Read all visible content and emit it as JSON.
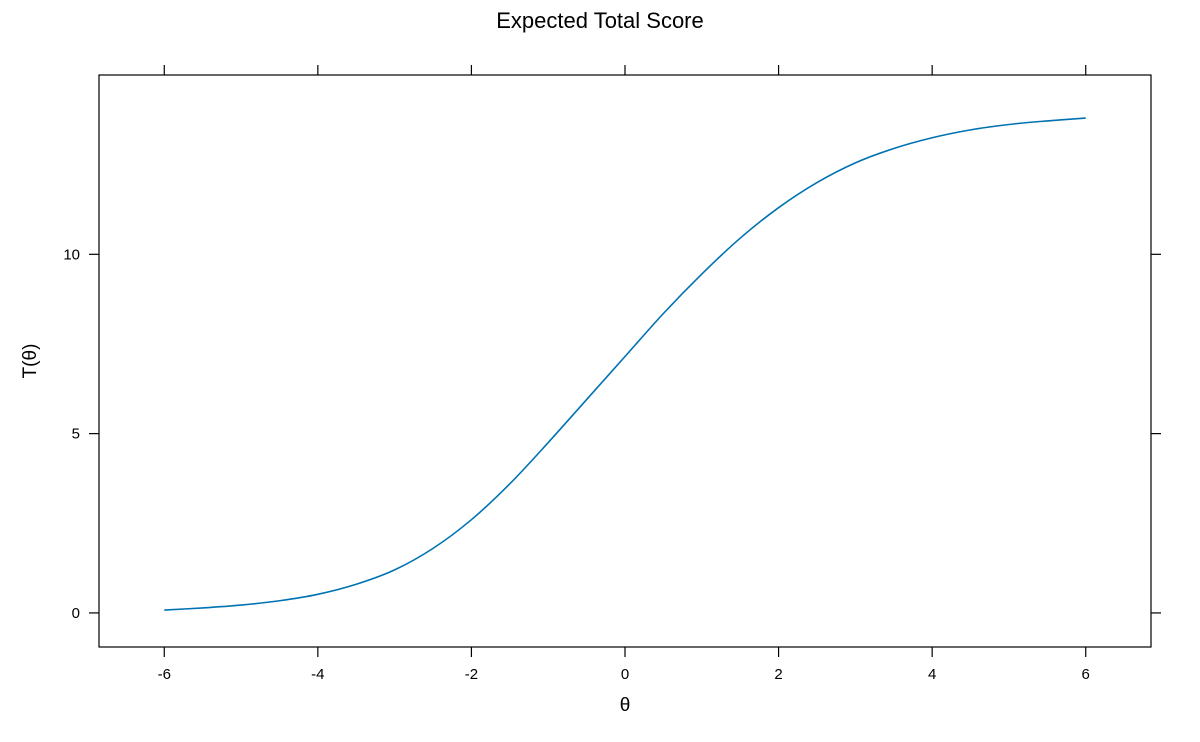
{
  "chart_data": {
    "type": "line",
    "title": "Expected Total Score",
    "xlabel": "θ",
    "ylabel": "T(θ)",
    "xlim": [
      -6.85,
      6.85
    ],
    "ylim": [
      -0.95,
      15.0
    ],
    "x_ticks": [
      -6,
      -4,
      -2,
      0,
      2,
      4,
      6
    ],
    "x_tick_labels": [
      "-6",
      "-4",
      "-2",
      "0",
      "2",
      "4",
      "6"
    ],
    "y_ticks": [
      0,
      5,
      10
    ],
    "y_tick_labels": [
      "0",
      "5",
      "10"
    ],
    "grid": false,
    "series": [
      {
        "color": "#0072B2",
        "x": [
          -6.0,
          -5.5,
          -5.0,
          -4.5,
          -4.0,
          -3.5,
          -3.0,
          -2.5,
          -2.0,
          -1.5,
          -1.0,
          -0.5,
          0.0,
          0.5,
          1.0,
          1.5,
          2.0,
          2.5,
          3.0,
          3.5,
          4.0,
          4.5,
          5.0,
          5.5,
          6.0
        ],
        "y": [
          0.08,
          0.14,
          0.22,
          0.34,
          0.52,
          0.8,
          1.2,
          1.8,
          2.6,
          3.6,
          4.75,
          5.95,
          7.15,
          8.35,
          9.45,
          10.45,
          11.3,
          12.0,
          12.55,
          12.95,
          13.25,
          13.47,
          13.62,
          13.72,
          13.8
        ]
      }
    ]
  }
}
